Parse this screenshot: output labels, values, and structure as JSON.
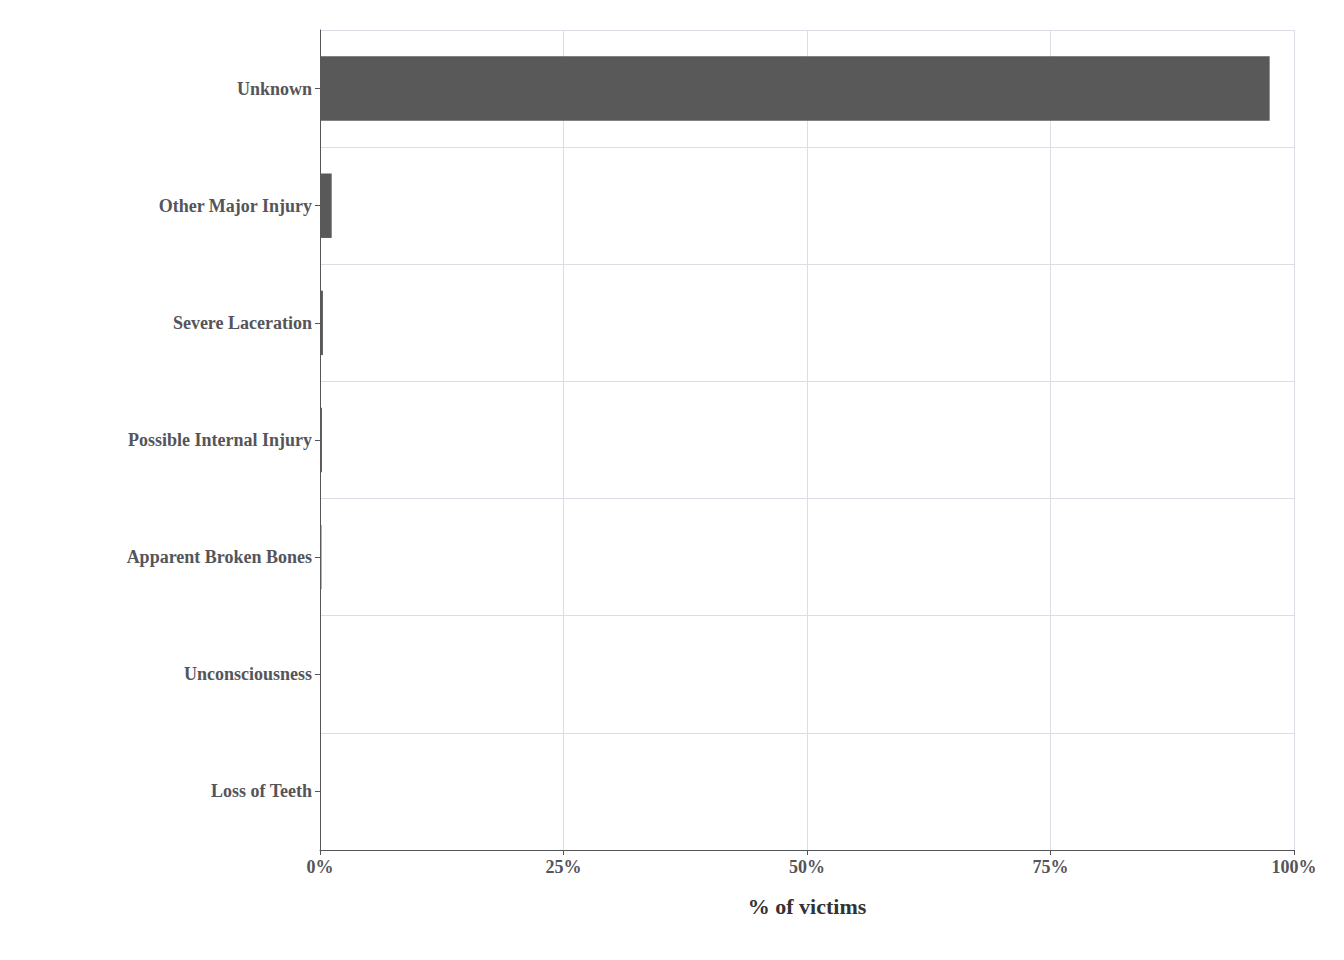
{
  "chart_data": {
    "type": "bar",
    "orientation": "horizontal",
    "categories": [
      "Unknown",
      "Other Major Injury",
      "Severe Laceration",
      "Possible Internal Injury",
      "Apparent Broken Bones",
      "Unconsciousness",
      "Loss of Teeth"
    ],
    "values": [
      97.5,
      1.2,
      0.3,
      0.2,
      0.15,
      0.1,
      0.05
    ],
    "color": "#595959",
    "xlabel": "% of victims",
    "xlim": [
      0,
      100
    ],
    "xticks": [
      {
        "value": 0,
        "label": "0%"
      },
      {
        "value": 25,
        "label": "25%"
      },
      {
        "value": 50,
        "label": "50%"
      },
      {
        "value": 75,
        "label": "75%"
      },
      {
        "value": 100,
        "label": "100%"
      }
    ],
    "grid": true
  }
}
